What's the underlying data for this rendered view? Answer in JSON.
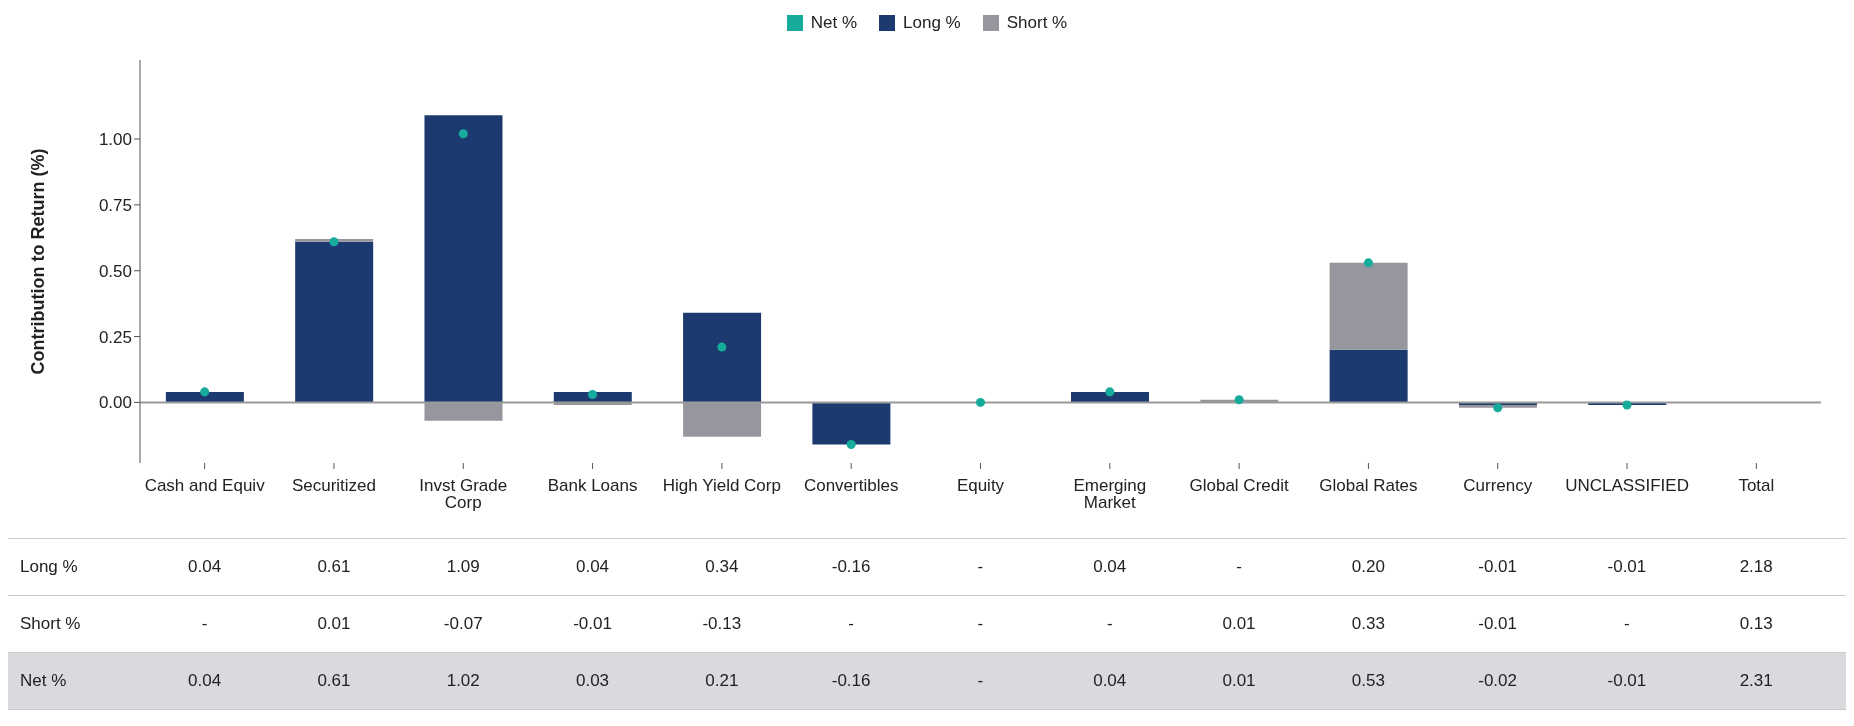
{
  "chart_data": {
    "type": "bar",
    "stacked": true,
    "ylabel": "Contribution to Return (%)",
    "categories": [
      "Cash and Equiv",
      "Securitized",
      "Invst Grade Corp",
      "Bank Loans",
      "High Yield Corp",
      "Convertibles",
      "Equity",
      "Emerging Market",
      "Global Credit",
      "Global Rates",
      "Currency",
      "UNCLASSIFIED",
      "Total"
    ],
    "series": [
      {
        "name": "Long %",
        "color": "#1c3a70",
        "values": [
          0.04,
          0.61,
          1.09,
          0.04,
          0.34,
          -0.16,
          0,
          0.04,
          null,
          0.2,
          -0.01,
          -0.01,
          null
        ],
        "value_labels": [
          "0.04",
          "0.61",
          "1.09",
          "0.04",
          "0.34",
          "-0.16",
          "-",
          "0.04",
          "-",
          "0.20",
          "-0.01",
          "-0.01",
          "2.18"
        ]
      },
      {
        "name": "Short %",
        "color": "#96969e",
        "values": [
          null,
          0.01,
          -0.07,
          -0.01,
          -0.13,
          null,
          null,
          null,
          0.01,
          0.33,
          -0.01,
          null,
          null
        ],
        "value_labels": [
          "-",
          "0.01",
          "-0.07",
          "-0.01",
          "-0.13",
          "-",
          "-",
          "-",
          "0.01",
          "0.33",
          "-0.01",
          "-",
          "0.13"
        ]
      },
      {
        "name": "Net %",
        "type": "scatter",
        "marker": "circle",
        "color": "#17ab9c",
        "values": [
          0.04,
          0.61,
          1.02,
          0.03,
          0.21,
          -0.16,
          0,
          0.04,
          0.01,
          0.53,
          -0.02,
          -0.01,
          null
        ],
        "value_labels": [
          "0.04",
          "0.61",
          "1.02",
          "0.03",
          "0.21",
          "-0.16",
          "-",
          "0.04",
          "0.01",
          "0.53",
          "-0.02",
          "-0.01",
          "2.31"
        ]
      }
    ],
    "ylim": [
      -0.23,
      1.3
    ],
    "yticks": [
      {
        "value": 0,
        "label": "0.00"
      },
      {
        "value": 0.25,
        "label": "0.25"
      },
      {
        "value": 0.5,
        "label": "0.50"
      },
      {
        "value": 0.75,
        "label": "0.75"
      },
      {
        "value": 1,
        "label": "1.00"
      }
    ],
    "ref_lines": [
      {
        "axis": "y",
        "value": 0,
        "color": "#9a9a9a"
      }
    ],
    "grid": false,
    "legend": "top"
  }
}
